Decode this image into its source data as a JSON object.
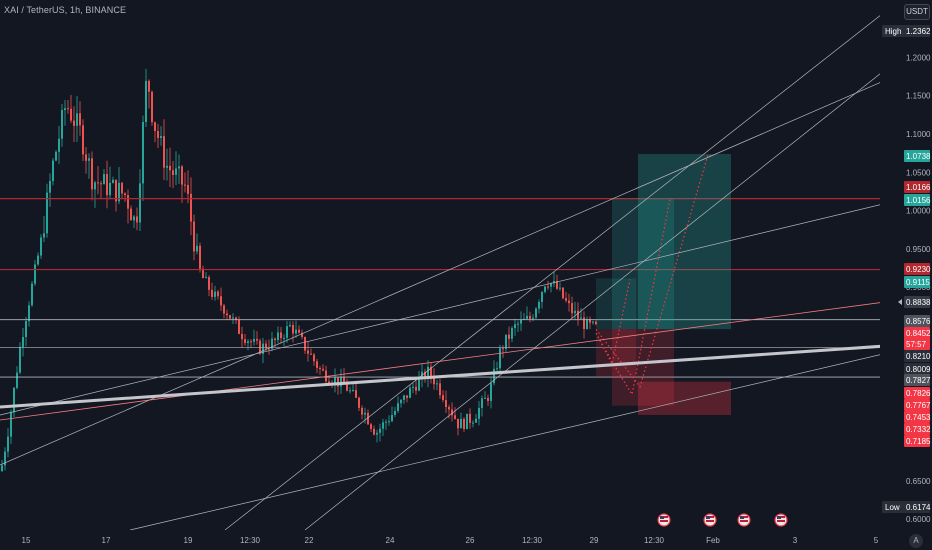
{
  "header": {
    "symbol_title": "XAI / TetherUS, 1h, BINANCE",
    "unit_button": "USDT"
  },
  "price_axis": {
    "ticks": [
      "1.2000",
      "1.1500",
      "1.1000",
      "1.0500",
      "1.0000",
      "0.9500",
      "0.9000",
      "0.6500",
      "0.6000"
    ],
    "high_label": "High",
    "high_value": "1.2362",
    "low_label": "Low",
    "low_value": "0.6174",
    "price_tags": [
      {
        "text": "1.0738",
        "color": "#26a69a"
      },
      {
        "text": "1.0166",
        "color": "#b2282e"
      },
      {
        "text": "1.0156",
        "color": "#26a69a"
      },
      {
        "text": "0.9230",
        "color": "#b2282e"
      },
      {
        "text": "0.9115",
        "color": "#26a69a"
      },
      {
        "text": "0.8838",
        "color": "#363a45"
      },
      {
        "text": "0.8576",
        "color": "#50535e"
      },
      {
        "text": "0.8452",
        "color": "#f23645"
      },
      {
        "text": "57:57",
        "color": "#f23645"
      },
      {
        "text": "0.8210",
        "color": "#2a2e39"
      },
      {
        "text": "0.8009",
        "color": "#2a2e39"
      },
      {
        "text": "0.7827",
        "color": "#50535e"
      },
      {
        "text": "0.7826",
        "color": "#f23645"
      },
      {
        "text": "0.7767",
        "color": "#f23645"
      },
      {
        "text": "0.7453",
        "color": "#f23645"
      },
      {
        "text": "0.7332",
        "color": "#f23645"
      },
      {
        "text": "0.7185",
        "color": "#f23645"
      }
    ]
  },
  "time_axis": {
    "ticks": [
      "15",
      "17",
      "19",
      "12:30",
      "22",
      "24",
      "26",
      "12:30",
      "29",
      "12:30",
      "Feb",
      "3",
      "5"
    ]
  },
  "auto_button": "A",
  "colors": {
    "background": "#131722",
    "up": "#26a69a",
    "down": "#ef5350",
    "resistance": "#b2282e"
  },
  "icons": [
    "flag-icon",
    "flag-icon",
    "flag-icon",
    "flag-icon"
  ]
}
